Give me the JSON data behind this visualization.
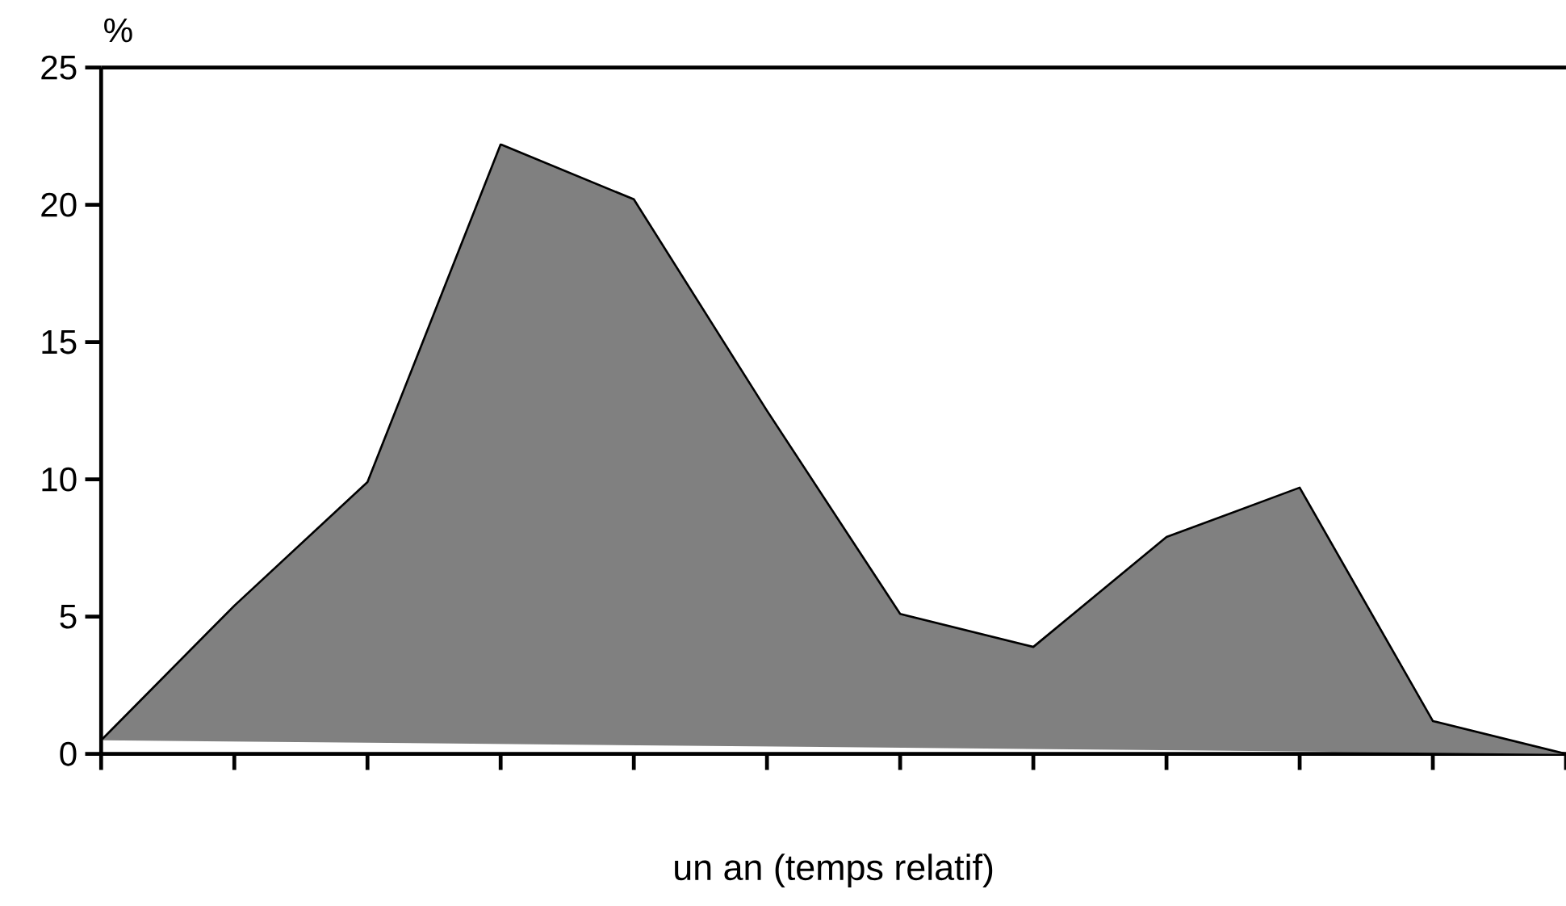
{
  "chart_data": {
    "type": "area",
    "ylabel": "%",
    "xlabel": "un an  (temps relatif)",
    "categories": [
      null,
      null,
      null,
      null,
      null,
      null,
      null,
      null,
      null,
      null,
      null,
      null
    ],
    "values": [
      0.5,
      5.4,
      9.9,
      22.2,
      20.2,
      12.5,
      5.1,
      3.9,
      7.9,
      9.7,
      1.2,
      0
    ],
    "color": "#000000",
    "ylim": [
      0,
      25
    ],
    "yticks": [
      0,
      5,
      10,
      15,
      20,
      25
    ],
    "tick_labels": "y"
  }
}
